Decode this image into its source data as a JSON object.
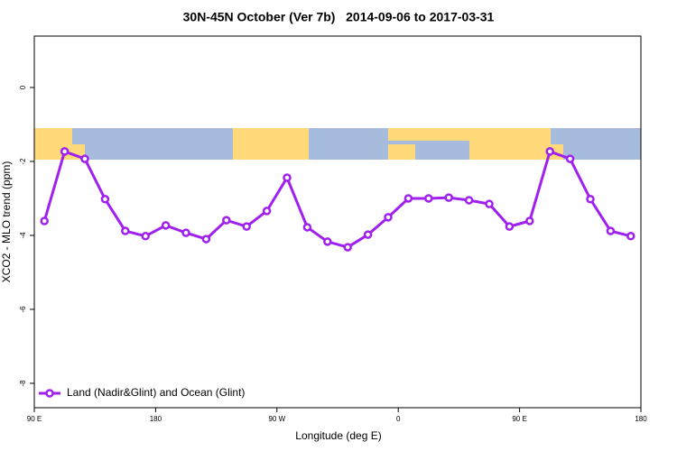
{
  "chart_data": {
    "type": "line",
    "title": "30N-45N October (Ver 7b)   2014-09-06 to 2017-03-31",
    "xlabel": "Longitude (deg E)",
    "ylabel": "XCO2 - MLO trend (ppm)",
    "x": [
      97.5,
      112.5,
      127.5,
      142.5,
      157.5,
      172.5,
      187.5,
      202.5,
      217.5,
      232.5,
      247.5,
      262.5,
      277.5,
      292.5,
      307.5,
      322.5,
      337.5,
      352.5,
      367.5,
      382.5,
      397.5,
      412.5,
      427.5,
      442.5,
      457.5,
      472.5,
      487.5,
      502.5,
      517.5,
      532.5
    ],
    "series": [
      {
        "name": "Land (Nadir&Glint) and Ocean (Glint)",
        "color": "#a020f0",
        "values": [
          -3.61,
          -1.73,
          -1.93,
          -3.02,
          -3.88,
          -4.02,
          -3.73,
          -3.93,
          -4.1,
          -3.59,
          -3.76,
          -3.34,
          -2.44,
          -3.78,
          -4.17,
          -4.32,
          -3.98,
          -3.51,
          -3.0,
          -3.0,
          -2.98,
          -3.05,
          -3.15,
          -3.76,
          -3.61,
          -1.73,
          -1.93,
          -3.02,
          -3.88,
          -4.02
        ]
      }
    ],
    "xlim": [
      90,
      540
    ],
    "xticks": [
      {
        "value": 90,
        "label": "90 E"
      },
      180,
      {
        "value": 270,
        "label": "90 W"
      },
      {
        "value": 360,
        "label": "0"
      },
      {
        "value": 450,
        "label": "90 E"
      },
      {
        "value": 540,
        "label": "180"
      }
    ],
    "ylim": [
      -8.66,
      1.39
    ],
    "yticks": [
      0,
      -2,
      -4,
      -6,
      -8
    ],
    "legend": "bottomleft"
  }
}
